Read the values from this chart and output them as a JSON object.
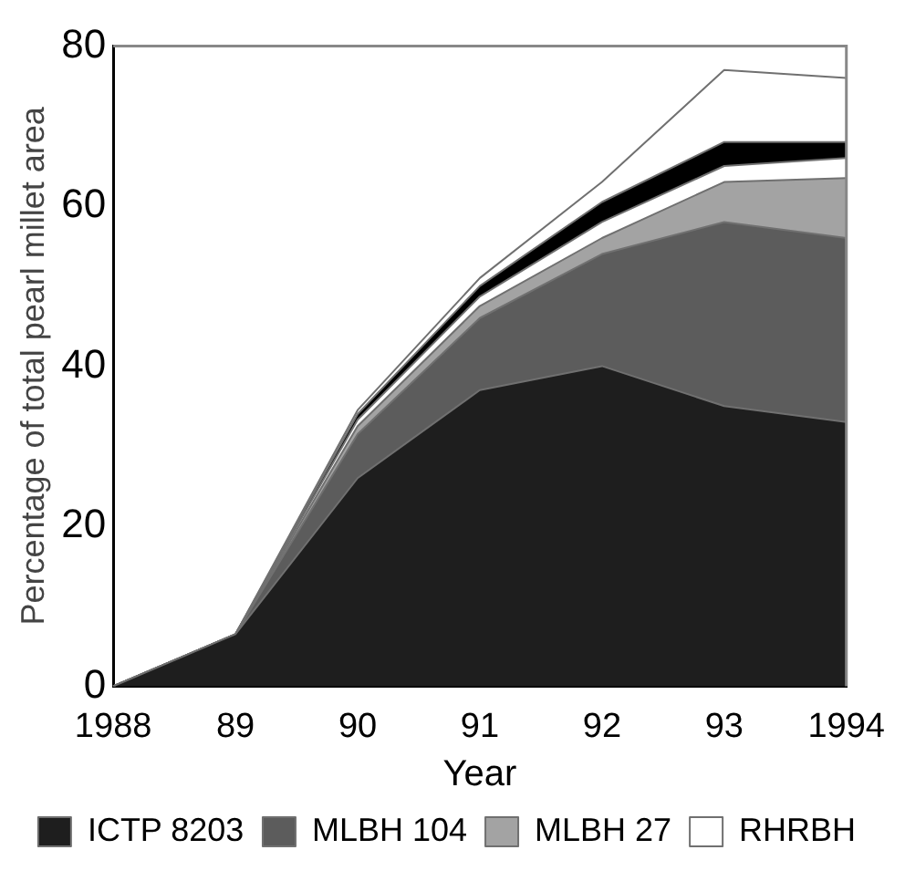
{
  "chart_data": {
    "type": "area",
    "stacked": true,
    "xlabel": "Year",
    "ylabel": "Percentage of total pearl millet area",
    "categories": [
      "1988",
      "89",
      "90",
      "91",
      "92",
      "93",
      "1994"
    ],
    "ylim": [
      0,
      80
    ],
    "yticks": [
      0,
      20,
      40,
      60,
      80
    ],
    "grid": false,
    "legend": "bottom",
    "series": [
      {
        "name": "ICTP 8203",
        "color": "#1e1e1e",
        "values": [
          0,
          6.5,
          26,
          37,
          40,
          35,
          33
        ]
      },
      {
        "name": "MLBH 104",
        "color": "#5c5c5c",
        "values": [
          0,
          0,
          5.5,
          9,
          14,
          23,
          23
        ]
      },
      {
        "name": "MLBH 27",
        "color": "#a3a3a3",
        "values": [
          0,
          0,
          1,
          1.5,
          2,
          5,
          7.5
        ]
      },
      {
        "color": "#ffffff",
        "values": [
          0,
          0,
          0.8,
          1.2,
          2,
          2,
          2.5
        ]
      },
      {
        "color": "#000000",
        "values": [
          0,
          0,
          0.7,
          1.3,
          2.5,
          3,
          2
        ]
      },
      {
        "name": "RHRBH",
        "color": "#ffffff",
        "values": [
          0,
          0,
          0.5,
          1,
          2.5,
          9,
          8
        ]
      }
    ]
  }
}
